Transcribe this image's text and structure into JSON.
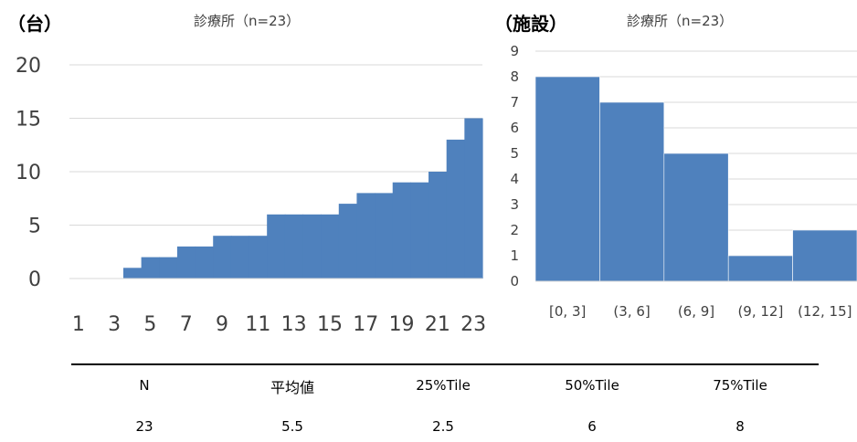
{
  "left": {
    "unit_label": "（台）",
    "title": "診療所（n=23）"
  },
  "right": {
    "unit_label": "（施設）",
    "title": "診療所（n=23）"
  },
  "colors": {
    "bar": "#4F81BD",
    "grid": "#D9D9D9",
    "axis_text": "#404040"
  },
  "chart_data": [
    {
      "type": "bar",
      "title": "診療所（n=23）",
      "x": [
        1,
        2,
        3,
        4,
        5,
        6,
        7,
        8,
        9,
        10,
        11,
        12,
        13,
        14,
        15,
        16,
        17,
        18,
        19,
        20,
        21,
        22,
        23
      ],
      "values": [
        0,
        0,
        0,
        1,
        2,
        2,
        3,
        3,
        4,
        4,
        4,
        6,
        6,
        6,
        6,
        7,
        8,
        8,
        9,
        9,
        10,
        13,
        15
      ],
      "xticks": [
        "1",
        "3",
        "5",
        "7",
        "9",
        "11",
        "13",
        "15",
        "17",
        "19",
        "21",
        "23"
      ],
      "ylim": [
        0,
        20
      ],
      "yticks": [
        "0",
        "5",
        "10",
        "15",
        "20"
      ],
      "grid": true,
      "ylabel": "（台）"
    },
    {
      "type": "bar",
      "title": "診療所（n=23）",
      "categories": [
        "[0, 3]",
        "(3, 6]",
        "(6, 9]",
        "(9, 12]",
        "(12, 15]"
      ],
      "values": [
        8,
        7,
        5,
        1,
        2
      ],
      "ylim": [
        0,
        9
      ],
      "yticks": [
        "0",
        "1",
        "2",
        "3",
        "4",
        "5",
        "6",
        "7",
        "8",
        "9"
      ],
      "grid": true,
      "ylabel": "（施設）"
    }
  ],
  "stats": {
    "headers": [
      "N",
      "平均値",
      "25%Tile",
      "50%Tile",
      "75%Tile"
    ],
    "values": [
      "23",
      "5.5",
      "2.5",
      "6",
      "8"
    ]
  }
}
